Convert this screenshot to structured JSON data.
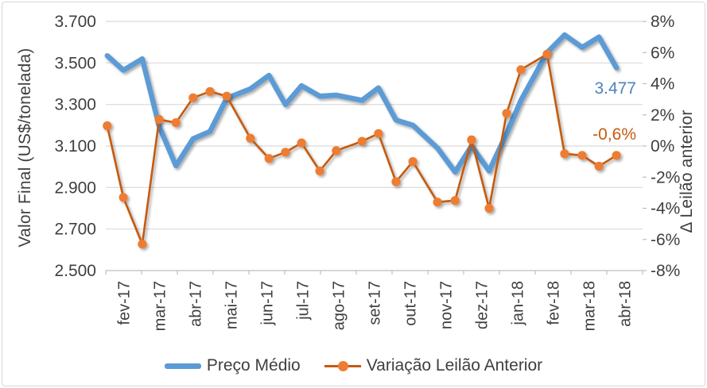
{
  "colors": {
    "price_line": "#5b9bd5",
    "variation_line": "#c55a11",
    "variation_marker": "#ed7d31",
    "gridline": "#d9d9d9",
    "axis_line": "#bfbfbf",
    "tick_text": "#3f3f3f",
    "price_label_text": "#4e81bd",
    "variation_label_text": "#c55a11"
  },
  "left_axis": {
    "title": "Valor Final (US$/tonelada)",
    "tick_labels": [
      "3.700",
      "3.500",
      "3.300",
      "3.100",
      "2.900",
      "2.700",
      "2.500"
    ],
    "min": 2500,
    "max": 3700,
    "step": 200
  },
  "right_axis": {
    "title": "Δ Leilão anterior",
    "tick_labels": [
      "8%",
      "6%",
      "4%",
      "2%",
      "0%",
      "-2%",
      "-4%",
      "-6%",
      "-8%"
    ],
    "min": -8,
    "max": 8,
    "step": 2
  },
  "x_axis": {
    "month_labels": [
      "fev-17",
      "mar-17",
      "abr-17",
      "mai-17",
      "jun-17",
      "jul-17",
      "ago-17",
      "set-17",
      "out-17",
      "nov-17",
      "dez-17",
      "jan-18",
      "fev-18",
      "mar-18",
      "abr-18"
    ]
  },
  "legend": {
    "items": [
      {
        "label": "Preço Médio"
      },
      {
        "label": "Variação Leilão Anterior"
      }
    ]
  },
  "annotations": {
    "price_label": {
      "text": "3.477"
    },
    "variation_label": {
      "text": "-0,6%"
    }
  },
  "chart_data": {
    "type": "line",
    "title": "",
    "x_unit": "months from fev-17 (tick index scale, 15 month slots)",
    "x": [
      0.04,
      0.49,
      1.02,
      1.49,
      1.96,
      2.44,
      2.91,
      3.38,
      4.04,
      4.56,
      5.02,
      5.47,
      5.98,
      6.44,
      7.16,
      7.62,
      8.11,
      8.58,
      9.27,
      9.76,
      10.22,
      10.71,
      11.2,
      11.6,
      12.33,
      12.82,
      13.31,
      13.78,
      14.27
    ],
    "series": [
      {
        "name": "Preço Médio",
        "axis": "left",
        "ylabel": "Valor Final (US$/tonelada)",
        "ylim": [
          2500,
          3700
        ],
        "values": [
          3535,
          3465,
          3520,
          3195,
          3005,
          3135,
          3170,
          3330,
          3375,
          3440,
          3300,
          3390,
          3340,
          3345,
          3320,
          3380,
          3225,
          3200,
          3090,
          2975,
          3100,
          2980,
          3160,
          3320,
          3550,
          3635,
          3575,
          3625,
          3477
        ],
        "last_point_label": "3.477"
      },
      {
        "name": "Variação Leilão Anterior",
        "axis": "right",
        "ylabel": "Δ Leilão anterior (%)",
        "ylim": [
          -8,
          8
        ],
        "values": [
          1.3,
          -3.3,
          -6.3,
          1.7,
          1.5,
          3.1,
          3.5,
          3.2,
          0.5,
          -0.8,
          -0.4,
          0.2,
          -1.6,
          -0.3,
          0.3,
          0.8,
          -2.3,
          -1.0,
          -3.6,
          -3.5,
          0.4,
          -4.0,
          2.1,
          4.9,
          5.9,
          -0.5,
          -0.6,
          -1.3,
          -0.6
        ],
        "last_point_label": "-0,6%"
      }
    ],
    "legend_position": "bottom",
    "grid": "horizontal-only"
  }
}
